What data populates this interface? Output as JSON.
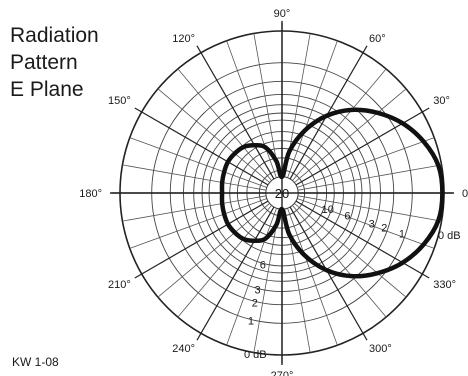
{
  "chart_data": {
    "type": "polar",
    "title": [
      "Radiation",
      "Pattern",
      "E Plane"
    ],
    "footnote": "KW 1-08",
    "angle_unit": "°",
    "angle_labels": [
      "0°",
      "30°",
      "60°",
      "90°",
      "120°",
      "150°",
      "180°",
      "210°",
      "240°",
      "270°",
      "300°",
      "330°"
    ],
    "angles_deg": [
      0,
      30,
      60,
      90,
      120,
      150,
      180,
      210,
      240,
      270,
      300,
      330
    ],
    "radial_unit": "dB",
    "rlim": [
      -20,
      0
    ],
    "radial_labels": [
      {
        "text": "0 dB",
        "value": 0,
        "side": "right"
      },
      {
        "text": "1",
        "value": -1,
        "side": "right"
      },
      {
        "text": "2",
        "value": -2,
        "side": "right"
      },
      {
        "text": "3",
        "value": -3,
        "side": "right"
      },
      {
        "text": "6",
        "value": -6,
        "side": "right"
      },
      {
        "text": "10",
        "value": -10,
        "side": "right"
      },
      {
        "text": "20",
        "value": -20,
        "side": "center"
      },
      {
        "text": "0 dB",
        "value": 0,
        "side": "bottom"
      },
      {
        "text": "1",
        "value": -1,
        "side": "bottom"
      },
      {
        "text": "2",
        "value": -2,
        "side": "bottom"
      },
      {
        "text": "3",
        "value": -3,
        "side": "bottom"
      },
      {
        "text": "6",
        "value": -6,
        "side": "bottom"
      }
    ],
    "radial_circles_db": [
      0,
      -1,
      -2,
      -3,
      -4,
      -5,
      -6,
      -8,
      -10,
      -12,
      -15,
      -20
    ],
    "series": [
      {
        "angles": [
          0,
          10,
          20,
          30,
          40,
          50,
          60,
          70,
          80,
          90,
          100,
          110,
          120,
          130,
          140,
          150,
          160,
          170,
          180,
          190,
          200,
          210,
          220,
          230,
          240,
          250,
          260,
          270,
          280,
          290,
          300,
          310,
          320,
          330,
          340,
          350
        ],
        "r_frac": [
          0.99,
          0.98,
          0.93,
          0.86,
          0.77,
          0.67,
          0.55,
          0.41,
          0.26,
          0.1,
          0.2,
          0.3,
          0.34,
          0.37,
          0.38,
          0.385,
          0.38,
          0.375,
          0.37,
          0.375,
          0.38,
          0.385,
          0.38,
          0.37,
          0.34,
          0.3,
          0.2,
          0.1,
          0.26,
          0.41,
          0.55,
          0.67,
          0.77,
          0.86,
          0.93,
          0.98
        ]
      }
    ],
    "grid": true
  }
}
